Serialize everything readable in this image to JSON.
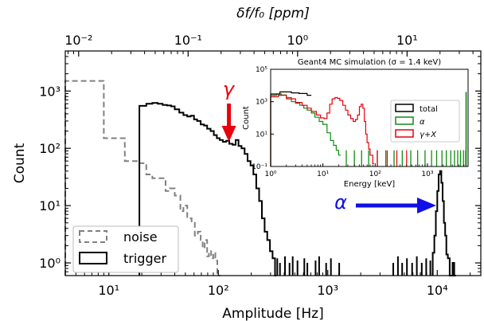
{
  "chart_data": [
    {
      "type": "histogram",
      "xlabel": "Amplitude [Hz]",
      "ylabel": "Count",
      "top_xlabel": "δf/f₀ [ppm]",
      "x_scale": "log",
      "y_scale": "log",
      "xlim": [
        4,
        25000
      ],
      "ylim": [
        0.6,
        5000
      ],
      "x_ticks": [
        {
          "v": 10,
          "label": "10¹"
        },
        {
          "v": 100,
          "label": "10²"
        },
        {
          "v": 1000,
          "label": "10³"
        },
        {
          "v": 10000,
          "label": "10⁴"
        }
      ],
      "y_ticks": [
        {
          "v": 1,
          "label": "10⁰"
        },
        {
          "v": 10,
          "label": "10¹"
        },
        {
          "v": 100,
          "label": "10²"
        },
        {
          "v": 1000,
          "label": "10³"
        }
      ],
      "top_ticks": [
        {
          "v": 0.01,
          "label": "10⁻²"
        },
        {
          "v": 0.1,
          "label": "10⁻¹"
        },
        {
          "v": 1,
          "label": "10⁰"
        },
        {
          "v": 10,
          "label": "10¹"
        }
      ],
      "top_scale_hz_per_ppm": 530,
      "legend": {
        "position": "lower-left",
        "entries": [
          "noise",
          "trigger"
        ]
      },
      "annotations": [
        {
          "text": "γ",
          "color": "#e8000b",
          "x": 125,
          "arrow_to_y": 155
        },
        {
          "text": "α",
          "color": "#1010e6",
          "x_text": 2600,
          "y": 12,
          "arrow_to_x": 9500
        }
      ],
      "series": [
        {
          "name": "noise",
          "style": "dashed",
          "color": "#808080",
          "bins": [
            [
              4,
              1500
            ],
            [
              6,
              1500
            ],
            [
              9,
              150
            ],
            [
              12,
              150
            ],
            [
              14,
              60
            ],
            [
              17,
              60
            ],
            [
              19,
              55
            ],
            [
              22,
              35
            ],
            [
              25,
              30
            ],
            [
              28,
              30
            ],
            [
              33,
              18
            ],
            [
              36,
              20
            ],
            [
              40,
              15
            ],
            [
              45,
              8
            ],
            [
              48,
              10
            ],
            [
              52,
              6
            ],
            [
              57,
              5
            ],
            [
              61,
              3
            ],
            [
              65,
              3.5
            ],
            [
              69,
              2.5
            ],
            [
              72,
              1.8
            ],
            [
              75,
              2.5
            ],
            [
              79,
              1.3
            ],
            [
              82,
              1.6
            ],
            [
              86,
              1.2
            ],
            [
              90,
              1.5
            ],
            [
              94,
              1.1
            ],
            [
              98,
              0.6
            ]
          ]
        },
        {
          "name": "trigger",
          "style": "solid",
          "color": "#000000",
          "bins": [
            [
              19,
              550
            ],
            [
              22,
              600
            ],
            [
              25,
              620
            ],
            [
              28,
              600
            ],
            [
              31,
              570
            ],
            [
              34,
              560
            ],
            [
              37,
              540
            ],
            [
              40,
              480
            ],
            [
              44,
              420
            ],
            [
              48,
              380
            ],
            [
              52,
              360
            ],
            [
              56,
              370
            ],
            [
              60,
              320
            ],
            [
              64,
              300
            ],
            [
              69,
              260
            ],
            [
              74,
              250
            ],
            [
              79,
              220
            ],
            [
              85,
              200
            ],
            [
              91,
              170
            ],
            [
              97,
              150
            ],
            [
              103,
              140
            ],
            [
              110,
              130
            ],
            [
              118,
              135
            ],
            [
              126,
              120
            ],
            [
              135,
              115
            ],
            [
              144,
              140
            ],
            [
              153,
              110
            ],
            [
              163,
              100
            ],
            [
              174,
              80
            ],
            [
              185,
              60
            ],
            [
              197,
              50
            ],
            [
              209,
              35
            ],
            [
              222,
              20
            ],
            [
              236,
              12
            ],
            [
              250,
              6
            ],
            [
              265,
              3.5
            ],
            [
              280,
              2.5
            ],
            [
              296,
              1.6
            ],
            [
              313,
              1.2
            ],
            [
              330,
              0.6
            ]
          ],
          "tail_bins": [
            [
              340,
              1.2
            ],
            [
              360,
              1.0
            ],
            [
              385,
              0.6
            ],
            [
              400,
              1.3
            ],
            [
              420,
              0.6
            ],
            [
              440,
              1.0
            ],
            [
              470,
              1.3
            ],
            [
              490,
              0.6
            ],
            [
              520,
              1.1
            ],
            [
              560,
              0.6
            ],
            [
              600,
              1.2
            ],
            [
              640,
              1.0
            ],
            [
              700,
              0.6
            ],
            [
              760,
              1.1
            ],
            [
              820,
              1.3
            ],
            [
              880,
              0.6
            ],
            [
              950,
              1.0
            ],
            [
              1050,
              1.2
            ],
            [
              1150,
              0.6
            ],
            [
              1250,
              1.0
            ],
            [
              1400,
              0.6
            ],
            [
              3900,
              1.0
            ],
            [
              4300,
              1.3
            ],
            [
              4700,
              1.0
            ],
            [
              5200,
              1.2
            ],
            [
              5800,
              1.0
            ],
            [
              6400,
              1.3
            ],
            [
              7100,
              1.0
            ],
            [
              7800,
              1.2
            ],
            [
              8500,
              1.1
            ]
          ],
          "alpha_peak": [
            [
              9100,
              1.5
            ],
            [
              9400,
              3
            ],
            [
              9700,
              8
            ],
            [
              10000,
              18
            ],
            [
              10300,
              35
            ],
            [
              10600,
              40
            ],
            [
              10900,
              25
            ],
            [
              11200,
              12
            ],
            [
              11500,
              5
            ],
            [
              11800,
              3
            ],
            [
              12100,
              1.4
            ],
            [
              12500,
              1.2
            ],
            [
              13000,
              0.6
            ],
            [
              13800,
              1.0
            ],
            [
              14300,
              0.6
            ]
          ]
        }
      ]
    },
    {
      "type": "histogram",
      "title": "Geant4 MC simulation (σ = 1.4 keV)",
      "xlabel": "Energy [keV]",
      "ylabel": "Count",
      "x_scale": "log",
      "y_scale": "log",
      "xlim": [
        1,
        6000
      ],
      "ylim": [
        0.1,
        100000
      ],
      "x_ticks": [
        {
          "v": 1,
          "label": "10⁰"
        },
        {
          "v": 10,
          "label": "10¹"
        },
        {
          "v": 100,
          "label": "10²"
        },
        {
          "v": 1000,
          "label": "10³"
        }
      ],
      "y_ticks": [
        {
          "v": 0.1,
          "label": "10⁻¹"
        },
        {
          "v": 10,
          "label": "10¹"
        },
        {
          "v": 1000,
          "label": "10³"
        },
        {
          "v": 100000,
          "label": "10⁵"
        }
      ],
      "legend": {
        "position": "upper-right",
        "entries": [
          "total",
          "α",
          "γ+X"
        ]
      },
      "series": [
        {
          "name": "total",
          "color": "#000000",
          "bins": [
            [
              1,
              3000
            ],
            [
              1.5,
              4000
            ],
            [
              2.5,
              3500
            ],
            [
              3.5,
              3200
            ],
            [
              5,
              2500
            ]
          ]
        },
        {
          "name": "α",
          "color": "#138a13",
          "bins": [
            [
              1,
              2500
            ],
            [
              1.3,
              3000
            ],
            [
              1.6,
              2600
            ],
            [
              2,
              1800
            ],
            [
              2.5,
              1000
            ],
            [
              3,
              800
            ],
            [
              3.6,
              600
            ],
            [
              4.3,
              400
            ],
            [
              5,
              300
            ],
            [
              6,
              200
            ],
            [
              7,
              110
            ],
            [
              8.5,
              60
            ],
            [
              10,
              40
            ],
            [
              12,
              12
            ],
            [
              14,
              4
            ],
            [
              16,
              2
            ],
            [
              18,
              1
            ],
            [
              20,
              0.5
            ]
          ],
          "spikes": [
            28,
            40,
            55,
            75,
            110,
            160,
            230,
            330,
            480,
            650,
            900,
            1200,
            1500,
            1900,
            2300,
            2800,
            3300,
            3800,
            4300,
            4900,
            5400
          ],
          "peak": {
            "x": 5500,
            "y": 4000
          }
        },
        {
          "name": "γ+X",
          "color": "#e8000b",
          "bins": [
            [
              1,
              2000
            ],
            [
              1.4,
              2500
            ],
            [
              2,
              1500
            ],
            [
              3,
              900
            ],
            [
              4,
              600
            ],
            [
              5,
              400
            ],
            [
              6,
              250
            ],
            [
              7.5,
              150
            ],
            [
              9,
              100
            ],
            [
              10.5,
              90
            ],
            [
              12,
              200
            ],
            [
              13.5,
              700
            ],
            [
              15,
              1500
            ],
            [
              17,
              1800
            ],
            [
              19,
              1600
            ],
            [
              21,
              1200
            ],
            [
              24,
              600
            ],
            [
              27,
              300
            ],
            [
              30,
              150
            ],
            [
              34,
              90
            ],
            [
              38,
              60
            ],
            [
              42,
              80
            ],
            [
              46,
              150
            ],
            [
              50,
              500
            ],
            [
              54,
              700
            ],
            [
              58,
              400
            ],
            [
              62,
              60
            ],
            [
              66,
              10
            ],
            [
              70,
              3
            ],
            [
              75,
              1.2
            ],
            [
              80,
              0.5
            ],
            [
              90,
              0.15
            ]
          ],
          "spikes": [
            110,
            170,
            260,
            400
          ]
        }
      ]
    }
  ]
}
